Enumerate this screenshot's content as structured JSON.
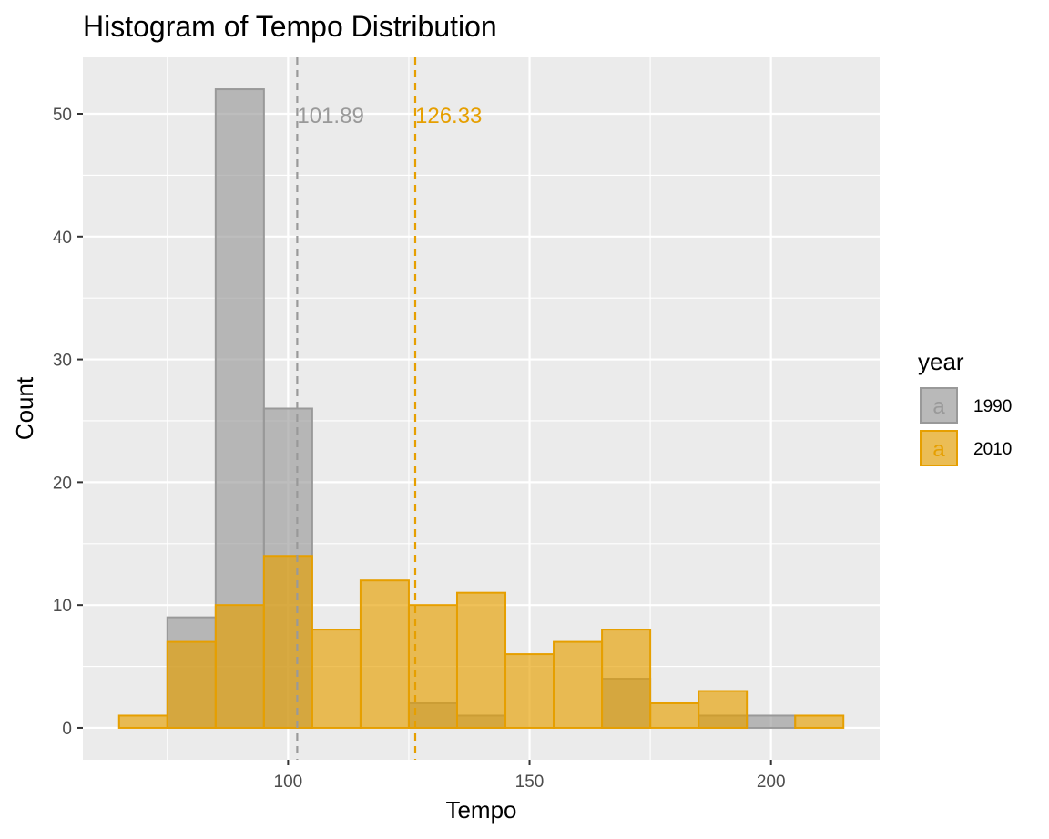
{
  "chart_data": {
    "type": "histogram",
    "title": "Histogram of Tempo Distribution",
    "xlabel": "Tempo",
    "ylabel": "Count",
    "xlim": [
      57.5,
      222.5
    ],
    "ylim": [
      -2.6,
      54.6
    ],
    "binwidth": 10,
    "bin_centers": [
      70,
      80,
      90,
      100,
      110,
      120,
      130,
      140,
      150,
      160,
      170,
      180,
      190,
      200,
      210
    ],
    "x_ticks": [
      100,
      150,
      200
    ],
    "x_tick_labels": [
      "100",
      "150",
      "200"
    ],
    "y_ticks": [
      0,
      10,
      20,
      30,
      40,
      50
    ],
    "y_tick_labels": [
      "0",
      "10",
      "20",
      "30",
      "40",
      "50"
    ],
    "grid": true,
    "legend": {
      "title": "year",
      "position": "right",
      "key_glyph": "a"
    },
    "series": [
      {
        "name": "1990",
        "fill": "#999999",
        "fill_opacity": 0.65,
        "stroke": "#999999",
        "values": [
          0,
          9,
          52,
          26,
          0,
          0,
          2,
          1,
          0,
          0,
          4,
          0,
          1,
          1,
          0
        ],
        "mean": 101.89,
        "mean_label": "101.89"
      },
      {
        "name": "2010",
        "fill": "#E69F00",
        "fill_opacity": 0.65,
        "stroke": "#E69F00",
        "values": [
          1,
          7,
          10,
          14,
          8,
          12,
          10,
          11,
          6,
          7,
          8,
          2,
          3,
          0,
          1
        ],
        "mean": 126.33,
        "mean_label": "126.33"
      }
    ]
  }
}
